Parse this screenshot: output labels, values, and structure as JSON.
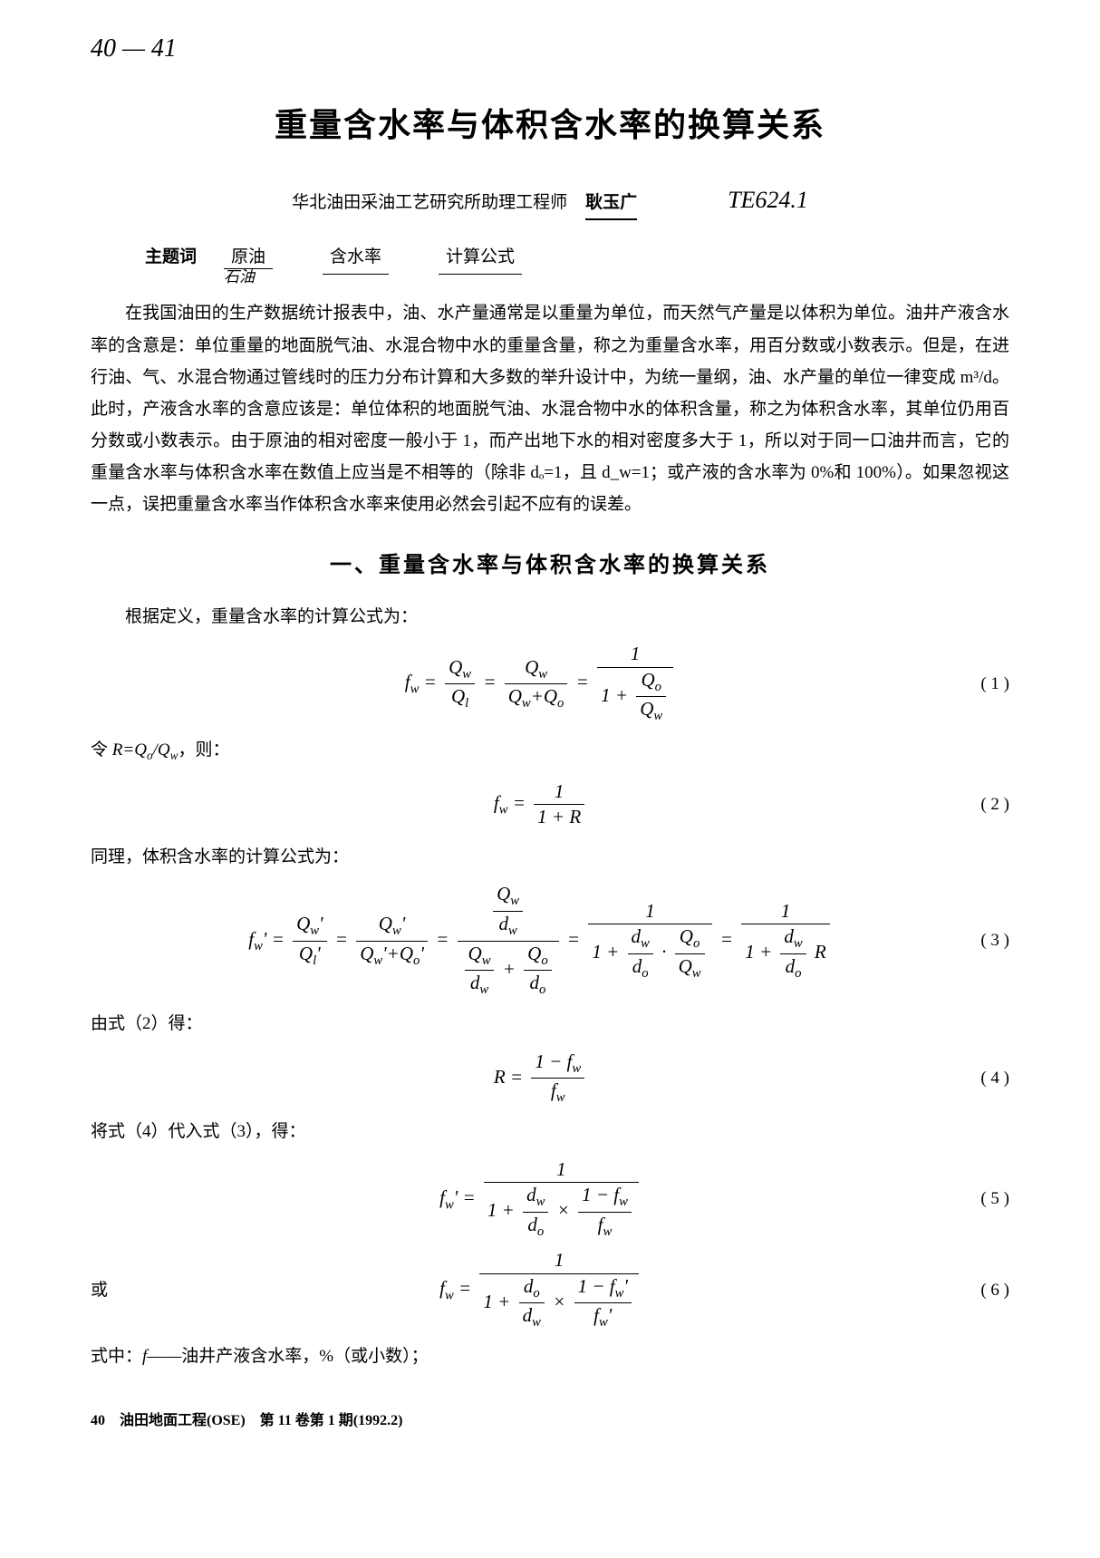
{
  "handwritten_note": "40 — 41",
  "title": "重量含水率与体积含水率的换算关系",
  "affiliation": "华北油田采油工艺研究所助理工程师",
  "author": "耿玉广",
  "classification_code": "TE624.1",
  "keywords": {
    "label": "主题词",
    "kw1": "原油",
    "kw1_sub": "石油",
    "kw2": "含水率",
    "kw3": "计算公式"
  },
  "intro_paragraph": "在我国油田的生产数据统计报表中，油、水产量通常是以重量为单位，而天然气产量是以体积为单位。油井产液含水率的含意是：单位重量的地面脱气油、水混合物中水的重量含量，称之为重量含水率，用百分数或小数表示。但是，在进行油、气、水混合物通过管线时的压力分布计算和大多数的举升设计中，为统一量纲，油、水产量的单位一律变成 m³/d。此时，产液含水率的含意应该是：单位体积的地面脱气油、水混合物中水的体积含量，称之为体积含水率，其单位仍用百分数或小数表示。由于原油的相对密度一般小于 1，而产出地下水的相对密度多大于 1，所以对于同一口油井而言，它的重量含水率与体积含水率在数值上应当是不相等的（除非 dₒ=1，且 d_w=1；或产液的含水率为 0%和 100%）。如果忽视这一点，误把重量含水率当作体积含水率来使用必然会引起不应有的误差。",
  "section1_heading": "一、重量含水率与体积含水率的换算关系",
  "text_def1": "根据定义，重量含水率的计算公式为：",
  "eq1_num": "( 1 )",
  "text_let_r": "令 R=Qₒ/Q_w，则：",
  "eq2_num": "( 2 )",
  "text_def2": "同理，体积含水率的计算公式为：",
  "eq3_num": "( 3 )",
  "text_from_eq2": "由式（2）得：",
  "eq4_num": "( 4 )",
  "text_sub_4_into_3": "将式（4）代入式（3），得：",
  "eq5_num": "( 5 )",
  "or_label": "或",
  "eq6_num": "( 6 )",
  "text_where": "式中：f——油井产液含水率，%（或小数）；",
  "footer": "40　油田地面工程(OSE)　第 11 卷第 1 期(1992.2)"
}
